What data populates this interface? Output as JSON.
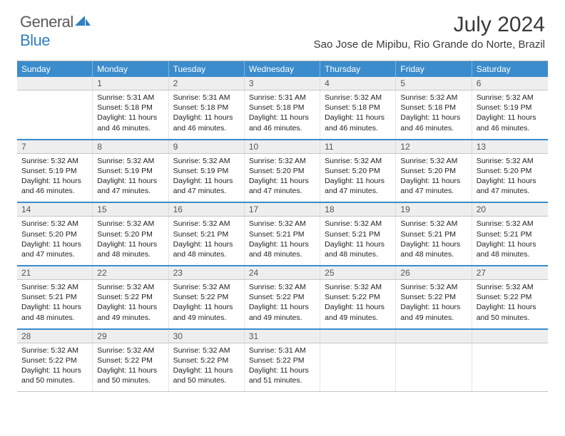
{
  "logo": {
    "word1": "General",
    "word2": "Blue"
  },
  "title": "July 2024",
  "location": "Sao Jose de Mipibu, Rio Grande do Norte, Brazil",
  "colors": {
    "header_blue": "#3b8ccc",
    "accent_blue": "#2f7fc1",
    "band_gray": "#eeeeee",
    "text": "#222222"
  },
  "calendar": {
    "days_of_week": [
      "Sunday",
      "Monday",
      "Tuesday",
      "Wednesday",
      "Thursday",
      "Friday",
      "Saturday"
    ],
    "first_weekday_offset": 1,
    "num_days": 31,
    "days": [
      {
        "n": 1,
        "sunrise": "5:31 AM",
        "sunset": "5:18 PM",
        "daylight": "11 hours and 46 minutes."
      },
      {
        "n": 2,
        "sunrise": "5:31 AM",
        "sunset": "5:18 PM",
        "daylight": "11 hours and 46 minutes."
      },
      {
        "n": 3,
        "sunrise": "5:31 AM",
        "sunset": "5:18 PM",
        "daylight": "11 hours and 46 minutes."
      },
      {
        "n": 4,
        "sunrise": "5:32 AM",
        "sunset": "5:18 PM",
        "daylight": "11 hours and 46 minutes."
      },
      {
        "n": 5,
        "sunrise": "5:32 AM",
        "sunset": "5:18 PM",
        "daylight": "11 hours and 46 minutes."
      },
      {
        "n": 6,
        "sunrise": "5:32 AM",
        "sunset": "5:19 PM",
        "daylight": "11 hours and 46 minutes."
      },
      {
        "n": 7,
        "sunrise": "5:32 AM",
        "sunset": "5:19 PM",
        "daylight": "11 hours and 46 minutes."
      },
      {
        "n": 8,
        "sunrise": "5:32 AM",
        "sunset": "5:19 PM",
        "daylight": "11 hours and 47 minutes."
      },
      {
        "n": 9,
        "sunrise": "5:32 AM",
        "sunset": "5:19 PM",
        "daylight": "11 hours and 47 minutes."
      },
      {
        "n": 10,
        "sunrise": "5:32 AM",
        "sunset": "5:20 PM",
        "daylight": "11 hours and 47 minutes."
      },
      {
        "n": 11,
        "sunrise": "5:32 AM",
        "sunset": "5:20 PM",
        "daylight": "11 hours and 47 minutes."
      },
      {
        "n": 12,
        "sunrise": "5:32 AM",
        "sunset": "5:20 PM",
        "daylight": "11 hours and 47 minutes."
      },
      {
        "n": 13,
        "sunrise": "5:32 AM",
        "sunset": "5:20 PM",
        "daylight": "11 hours and 47 minutes."
      },
      {
        "n": 14,
        "sunrise": "5:32 AM",
        "sunset": "5:20 PM",
        "daylight": "11 hours and 47 minutes."
      },
      {
        "n": 15,
        "sunrise": "5:32 AM",
        "sunset": "5:20 PM",
        "daylight": "11 hours and 48 minutes."
      },
      {
        "n": 16,
        "sunrise": "5:32 AM",
        "sunset": "5:21 PM",
        "daylight": "11 hours and 48 minutes."
      },
      {
        "n": 17,
        "sunrise": "5:32 AM",
        "sunset": "5:21 PM",
        "daylight": "11 hours and 48 minutes."
      },
      {
        "n": 18,
        "sunrise": "5:32 AM",
        "sunset": "5:21 PM",
        "daylight": "11 hours and 48 minutes."
      },
      {
        "n": 19,
        "sunrise": "5:32 AM",
        "sunset": "5:21 PM",
        "daylight": "11 hours and 48 minutes."
      },
      {
        "n": 20,
        "sunrise": "5:32 AM",
        "sunset": "5:21 PM",
        "daylight": "11 hours and 48 minutes."
      },
      {
        "n": 21,
        "sunrise": "5:32 AM",
        "sunset": "5:21 PM",
        "daylight": "11 hours and 48 minutes."
      },
      {
        "n": 22,
        "sunrise": "5:32 AM",
        "sunset": "5:22 PM",
        "daylight": "11 hours and 49 minutes."
      },
      {
        "n": 23,
        "sunrise": "5:32 AM",
        "sunset": "5:22 PM",
        "daylight": "11 hours and 49 minutes."
      },
      {
        "n": 24,
        "sunrise": "5:32 AM",
        "sunset": "5:22 PM",
        "daylight": "11 hours and 49 minutes."
      },
      {
        "n": 25,
        "sunrise": "5:32 AM",
        "sunset": "5:22 PM",
        "daylight": "11 hours and 49 minutes."
      },
      {
        "n": 26,
        "sunrise": "5:32 AM",
        "sunset": "5:22 PM",
        "daylight": "11 hours and 49 minutes."
      },
      {
        "n": 27,
        "sunrise": "5:32 AM",
        "sunset": "5:22 PM",
        "daylight": "11 hours and 50 minutes."
      },
      {
        "n": 28,
        "sunrise": "5:32 AM",
        "sunset": "5:22 PM",
        "daylight": "11 hours and 50 minutes."
      },
      {
        "n": 29,
        "sunrise": "5:32 AM",
        "sunset": "5:22 PM",
        "daylight": "11 hours and 50 minutes."
      },
      {
        "n": 30,
        "sunrise": "5:32 AM",
        "sunset": "5:22 PM",
        "daylight": "11 hours and 50 minutes."
      },
      {
        "n": 31,
        "sunrise": "5:31 AM",
        "sunset": "5:22 PM",
        "daylight": "11 hours and 51 minutes."
      }
    ],
    "labels": {
      "sunrise_prefix": "Sunrise: ",
      "sunset_prefix": "Sunset: ",
      "daylight_prefix": "Daylight: "
    }
  }
}
